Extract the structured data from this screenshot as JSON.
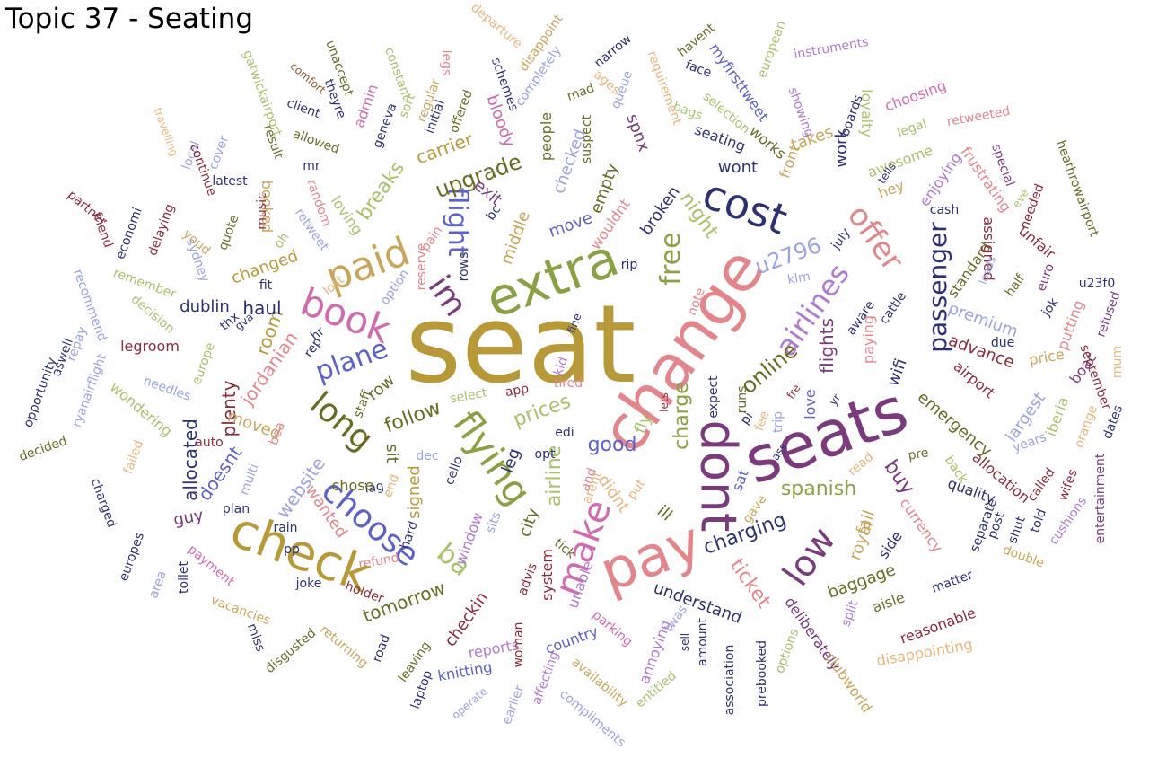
{
  "title": "Topic 37 - Seating",
  "colors": {
    "gold": "#b8993a",
    "rose": "#e2868c",
    "green": "#8aa045",
    "purple": "#7a3a7c",
    "navy": "#2c3171",
    "pink": "#d06bb1",
    "olive": "#6b6a24",
    "blue": "#5b61c6",
    "brown": "#8b5a2b",
    "maroon": "#8a2a3a",
    "lilac": "#b07bd0",
    "lime": "#a8c26a",
    "peach": "#e7b67a",
    "lav": "#9aa3e0",
    "tan": "#c9a55a"
  },
  "words": [
    {
      "t": "seat",
      "c": "gold"
    },
    {
      "t": "change",
      "c": "rose"
    },
    {
      "t": "seats",
      "c": "purple"
    },
    {
      "t": "pay",
      "c": "rose"
    },
    {
      "t": "extra",
      "c": "green"
    },
    {
      "t": "check",
      "c": "gold"
    },
    {
      "t": "dont",
      "c": "purple"
    },
    {
      "t": "cost",
      "c": "navy"
    },
    {
      "t": "paid",
      "c": "tan"
    },
    {
      "t": "book",
      "c": "pink"
    },
    {
      "t": "flying",
      "c": "green"
    },
    {
      "t": "low",
      "c": "purple"
    },
    {
      "t": "make",
      "c": "pink"
    },
    {
      "t": "choose",
      "c": "blue"
    },
    {
      "t": "long",
      "c": "olive"
    },
    {
      "t": "plane",
      "c": "blue"
    },
    {
      "t": "airlines",
      "c": "lilac"
    },
    {
      "t": "offer",
      "c": "rose"
    },
    {
      "t": "passenger",
      "c": "navy"
    },
    {
      "t": "free",
      "c": "green"
    },
    {
      "t": "flight",
      "c": "blue"
    },
    {
      "t": "im",
      "c": "purple"
    },
    {
      "t": "ba",
      "c": "lime"
    },
    {
      "t": "upgrade",
      "c": "olive"
    },
    {
      "t": "u2796",
      "c": "lav"
    },
    {
      "t": "online",
      "c": "olive"
    },
    {
      "t": "follow",
      "c": "olive"
    },
    {
      "t": "night",
      "c": "lime"
    },
    {
      "t": "charging",
      "c": "navy"
    },
    {
      "t": "spanish",
      "c": "green"
    },
    {
      "t": "ticket",
      "c": "rose"
    },
    {
      "t": "tomorrow",
      "c": "olive"
    },
    {
      "t": "charge",
      "c": "green"
    },
    {
      "t": "prices",
      "c": "lime"
    },
    {
      "t": "airline",
      "c": "lime"
    },
    {
      "t": "good",
      "c": "blue"
    },
    {
      "t": "breaks",
      "c": "lime"
    },
    {
      "t": "carrier",
      "c": "gold"
    },
    {
      "t": "website",
      "c": "lav"
    },
    {
      "t": "allocated",
      "c": "navy"
    },
    {
      "t": "doesnt",
      "c": "blue"
    },
    {
      "t": "plenty",
      "c": "maroon"
    },
    {
      "t": "jordanian",
      "c": "rose"
    },
    {
      "t": "room",
      "c": "gold"
    },
    {
      "t": "haul",
      "c": "navy"
    },
    {
      "t": "dublin",
      "c": "navy"
    },
    {
      "t": "changed",
      "c": "gold"
    },
    {
      "t": "booked",
      "c": "tan"
    },
    {
      "t": "moved",
      "c": "tan"
    },
    {
      "t": "wanted",
      "c": "rose"
    },
    {
      "t": "row",
      "c": "olive"
    },
    {
      "t": "sit",
      "c": "olive"
    },
    {
      "t": "signed",
      "c": "gold"
    },
    {
      "t": "checkin",
      "c": "maroon"
    },
    {
      "t": "window",
      "c": "lilac"
    },
    {
      "t": "city",
      "c": "olive"
    },
    {
      "t": "leg",
      "c": "navy"
    },
    {
      "t": "middle",
      "c": "tan"
    },
    {
      "t": "exit",
      "c": "purple"
    },
    {
      "t": "checked",
      "c": "lav"
    },
    {
      "t": "empty",
      "c": "olive"
    },
    {
      "t": "move",
      "c": "blue"
    },
    {
      "t": "wouldnt",
      "c": "rose"
    },
    {
      "t": "broken",
      "c": "navy"
    },
    {
      "t": "didnt",
      "c": "peach"
    },
    {
      "t": "fly",
      "c": "lime"
    },
    {
      "t": "ill",
      "c": "olive"
    },
    {
      "t": "front",
      "c": "tan"
    },
    {
      "t": "takes",
      "c": "tan"
    },
    {
      "t": "work",
      "c": "navy"
    },
    {
      "t": "works",
      "c": "olive"
    },
    {
      "t": "wont",
      "c": "navy"
    },
    {
      "t": "seating",
      "c": "navy"
    },
    {
      "t": "spnx",
      "c": "purple"
    },
    {
      "t": "awesome",
      "c": "lime"
    },
    {
      "t": "hey",
      "c": "tan"
    },
    {
      "t": "flights",
      "c": "purple"
    },
    {
      "t": "paying",
      "c": "rose"
    },
    {
      "t": "premium",
      "c": "lav"
    },
    {
      "t": "advance",
      "c": "maroon"
    },
    {
      "t": "airport",
      "c": "maroon"
    },
    {
      "t": "emergency",
      "c": "olive"
    },
    {
      "t": "wifi",
      "c": "navy"
    },
    {
      "t": "buy",
      "c": "purple"
    },
    {
      "t": "fail",
      "c": "tan"
    },
    {
      "t": "royal",
      "c": "tan"
    },
    {
      "t": "side",
      "c": "navy"
    },
    {
      "t": "baggage",
      "c": "olive"
    },
    {
      "t": "aisle",
      "c": "olive"
    },
    {
      "t": "understand",
      "c": "navy"
    },
    {
      "t": "deliberately",
      "c": "purple"
    },
    {
      "t": "clubworld",
      "c": "tan"
    },
    {
      "t": "disappointing",
      "c": "peach"
    },
    {
      "t": "reasonable",
      "c": "maroon"
    },
    {
      "t": "matter",
      "c": "navy"
    },
    {
      "t": "currency",
      "c": "rose"
    },
    {
      "t": "quality",
      "c": "navy"
    },
    {
      "t": "back",
      "c": "lime"
    },
    {
      "t": "pre",
      "c": "olive"
    },
    {
      "t": "allocation",
      "c": "maroon"
    },
    {
      "t": "largest",
      "c": "lav"
    },
    {
      "t": "years",
      "c": "lav"
    },
    {
      "t": "iberia",
      "c": "lime"
    },
    {
      "t": "price",
      "c": "tan"
    },
    {
      "t": "boac",
      "c": "purple"
    },
    {
      "t": "putting",
      "c": "rose"
    },
    {
      "t": "september",
      "c": "maroon"
    },
    {
      "t": "standard",
      "c": "olive"
    },
    {
      "t": "loyalty",
      "c": "lime"
    },
    {
      "t": "boards",
      "c": "navy"
    },
    {
      "t": "choosing",
      "c": "pink"
    },
    {
      "t": "legal",
      "c": "lime"
    },
    {
      "t": "retweeted",
      "c": "rose"
    },
    {
      "t": "enjoying",
      "c": "lilac"
    },
    {
      "t": "frustrating",
      "c": "rose"
    },
    {
      "t": "cash",
      "c": "navy"
    },
    {
      "t": "assigned",
      "c": "maroon"
    },
    {
      "t": "unfair",
      "c": "maroon"
    },
    {
      "t": "euro",
      "c": "purple"
    },
    {
      "t": "half",
      "c": "olive"
    },
    {
      "t": "heathrowairport",
      "c": "olive"
    },
    {
      "t": "u23f0",
      "c": "navy"
    },
    {
      "t": "refused",
      "c": "purple"
    },
    {
      "t": "instruments",
      "c": "lilac"
    },
    {
      "t": "european",
      "c": "lime"
    },
    {
      "t": "showing",
      "c": "lilac"
    },
    {
      "t": "havent",
      "c": "olive"
    },
    {
      "t": "myfirsttweet",
      "c": "blue"
    },
    {
      "t": "face",
      "c": "navy"
    },
    {
      "t": "selection",
      "c": "lime"
    },
    {
      "t": "bags",
      "c": "lime"
    },
    {
      "t": "requirement",
      "c": "peach"
    },
    {
      "t": "narrow",
      "c": "navy"
    },
    {
      "t": "queue",
      "c": "lav"
    },
    {
      "t": "ages",
      "c": "peach"
    },
    {
      "t": "mad",
      "c": "olive"
    },
    {
      "t": "disappoint",
      "c": "tan"
    },
    {
      "t": "departure",
      "c": "peach"
    },
    {
      "t": "completely",
      "c": "lav"
    },
    {
      "t": "schemes",
      "c": "navy"
    },
    {
      "t": "offered",
      "c": "olive"
    },
    {
      "t": "legs",
      "c": "rose"
    },
    {
      "t": "regular",
      "c": "tan"
    },
    {
      "t": "constant",
      "c": "lime"
    },
    {
      "t": "initial",
      "c": "navy"
    },
    {
      "t": "unaccept",
      "c": "olive"
    },
    {
      "t": "theyre",
      "c": "navy"
    },
    {
      "t": "admin",
      "c": "pink"
    },
    {
      "t": "geneva",
      "c": "navy"
    },
    {
      "t": "bloody",
      "c": "pink"
    },
    {
      "t": "people",
      "c": "olive"
    },
    {
      "t": "suspect",
      "c": "olive"
    },
    {
      "t": "comfort",
      "c": "brown"
    },
    {
      "t": "client",
      "c": "navy"
    },
    {
      "t": "allowed",
      "c": "olive"
    },
    {
      "t": "result",
      "c": "olive"
    },
    {
      "t": "gatwickairport",
      "c": "lime"
    },
    {
      "t": "travelling",
      "c": "peach"
    },
    {
      "t": "local",
      "c": "lav"
    },
    {
      "t": "cover",
      "c": "lav"
    },
    {
      "t": "continue",
      "c": "maroon"
    },
    {
      "t": "latest",
      "c": "navy"
    },
    {
      "t": "music",
      "c": "maroon"
    },
    {
      "t": "random",
      "c": "rose"
    },
    {
      "t": "mr",
      "c": "navy"
    },
    {
      "t": "loving",
      "c": "lime"
    },
    {
      "t": "retweet",
      "c": "lav"
    },
    {
      "t": "partner",
      "c": "maroon"
    },
    {
      "t": "friend",
      "c": "maroon"
    },
    {
      "t": "economi",
      "c": "navy"
    },
    {
      "t": "delaying",
      "c": "maroon"
    },
    {
      "t": "sydney",
      "c": "lav"
    },
    {
      "t": "quote",
      "c": "olive"
    },
    {
      "t": "youd",
      "c": "tan"
    },
    {
      "t": "remember",
      "c": "lime"
    },
    {
      "t": "recommend",
      "c": "lav"
    },
    {
      "t": "decision",
      "c": "lime"
    },
    {
      "t": "legroom",
      "c": "maroon"
    },
    {
      "t": "europe",
      "c": "lime"
    },
    {
      "t": "thx",
      "c": "navy"
    },
    {
      "t": "gva",
      "c": "navy"
    },
    {
      "t": "repay",
      "c": "lav"
    },
    {
      "t": "aswell",
      "c": "navy"
    },
    {
      "t": "opportunity",
      "c": "navy"
    },
    {
      "t": "ryanairflight",
      "c": "lav"
    },
    {
      "t": "needles",
      "c": "lav"
    },
    {
      "t": "wondering",
      "c": "lime"
    },
    {
      "t": "decided",
      "c": "olive"
    },
    {
      "t": "failed",
      "c": "peach"
    },
    {
      "t": "charged",
      "c": "navy"
    },
    {
      "t": "europes",
      "c": "navy"
    },
    {
      "t": "area",
      "c": "lav"
    },
    {
      "t": "toilet",
      "c": "navy"
    },
    {
      "t": "payment",
      "c": "pink"
    },
    {
      "t": "vacancies",
      "c": "tan"
    },
    {
      "t": "guy",
      "c": "purple"
    },
    {
      "t": "auto",
      "c": "maroon"
    },
    {
      "t": "plan",
      "c": "navy"
    },
    {
      "t": "multi",
      "c": "lav"
    },
    {
      "t": "rain",
      "c": "navy"
    },
    {
      "t": "pp",
      "c": "navy"
    },
    {
      "t": "joke",
      "c": "navy"
    },
    {
      "t": "holder",
      "c": "maroon"
    },
    {
      "t": "refund",
      "c": "rose"
    },
    {
      "t": "miss",
      "c": "navy"
    },
    {
      "t": "disgusted",
      "c": "olive"
    },
    {
      "t": "returning",
      "c": "tan"
    },
    {
      "t": "road",
      "c": "navy"
    },
    {
      "t": "leaving",
      "c": "olive"
    },
    {
      "t": "laptop",
      "c": "navy"
    },
    {
      "t": "knitting",
      "c": "blue"
    },
    {
      "t": "reports",
      "c": "lilac"
    },
    {
      "t": "operate",
      "c": "lav"
    },
    {
      "t": "earlier",
      "c": "lav"
    },
    {
      "t": "woman",
      "c": "maroon"
    },
    {
      "t": "affecting",
      "c": "lilac"
    },
    {
      "t": "country",
      "c": "blue"
    },
    {
      "t": "compliments",
      "c": "lav"
    },
    {
      "t": "availability",
      "c": "tan"
    },
    {
      "t": "entitled",
      "c": "lime"
    },
    {
      "t": "annoying",
      "c": "lilac"
    },
    {
      "t": "twas",
      "c": "lav"
    },
    {
      "t": "amount",
      "c": "navy"
    },
    {
      "t": "association",
      "c": "navy"
    },
    {
      "t": "prebooked",
      "c": "navy"
    },
    {
      "t": "options",
      "c": "lime"
    },
    {
      "t": "parking",
      "c": "pink"
    },
    {
      "t": "sell",
      "c": "navy"
    },
    {
      "t": "split",
      "c": "lilac"
    },
    {
      "t": "system",
      "c": "maroon"
    },
    {
      "t": "unable",
      "c": "lilac"
    },
    {
      "t": "tick",
      "c": "olive"
    },
    {
      "t": "advis",
      "c": "maroon"
    },
    {
      "t": "cello",
      "c": "navy"
    },
    {
      "t": "sits",
      "c": "lav"
    },
    {
      "t": "hard",
      "c": "navy"
    },
    {
      "t": "iag",
      "c": "navy"
    },
    {
      "t": "end",
      "c": "peach"
    },
    {
      "t": "chose",
      "c": "olive"
    },
    {
      "t": "dec",
      "c": "lav"
    },
    {
      "t": "opt",
      "c": "navy"
    },
    {
      "t": "edi",
      "c": "navy"
    },
    {
      "t": "app",
      "c": "maroon"
    },
    {
      "t": "select",
      "c": "lime"
    },
    {
      "t": "tired",
      "c": "rose"
    },
    {
      "t": "kid",
      "c": "lilac"
    },
    {
      "t": "fine",
      "c": "navy"
    },
    {
      "t": "staff",
      "c": "olive"
    },
    {
      "t": "bea",
      "c": "rose"
    },
    {
      "t": "rep",
      "c": "navy"
    },
    {
      "t": "hr",
      "c": "navy"
    },
    {
      "t": "lost",
      "c": "peach"
    },
    {
      "t": "option",
      "c": "lav"
    },
    {
      "t": "reserve",
      "c": "rose"
    },
    {
      "t": "pain",
      "c": "rose"
    },
    {
      "t": "rows",
      "c": "navy"
    },
    {
      "t": "bc",
      "c": "navy"
    },
    {
      "t": "rip",
      "c": "navy"
    },
    {
      "t": "note",
      "c": "rose"
    },
    {
      "t": "expect",
      "c": "navy"
    },
    {
      "t": "runs",
      "c": "olive"
    },
    {
      "t": "lets",
      "c": "maroon"
    },
    {
      "t": "pi",
      "c": "navy"
    },
    {
      "t": "fee",
      "c": "peach"
    },
    {
      "t": "trip",
      "c": "lav"
    },
    {
      "t": "fre",
      "c": "maroon"
    },
    {
      "t": "klm",
      "c": "lav"
    },
    {
      "t": "love",
      "c": "blue"
    },
    {
      "t": "yr",
      "c": "navy"
    },
    {
      "t": "july",
      "c": "navy"
    },
    {
      "t": "aware",
      "c": "navy"
    },
    {
      "t": "cattle",
      "c": "navy"
    },
    {
      "t": "sat",
      "c": "blue"
    },
    {
      "t": "gave",
      "c": "tan"
    },
    {
      "t": "ass",
      "c": "navy"
    },
    {
      "t": "put",
      "c": "peach"
    },
    {
      "t": "arent",
      "c": "peach"
    },
    {
      "t": "read",
      "c": "peach"
    },
    {
      "t": "tells",
      "c": "navy"
    },
    {
      "t": "jok",
      "c": "navy"
    },
    {
      "t": "loads",
      "c": "lav"
    },
    {
      "t": "oh",
      "c": "lime"
    },
    {
      "t": "eve",
      "c": "lime"
    },
    {
      "t": "needed",
      "c": "maroon"
    },
    {
      "t": "special",
      "c": "purple"
    },
    {
      "t": "fit",
      "c": "navy"
    },
    {
      "t": "due",
      "c": "navy"
    },
    {
      "t": "post",
      "c": "navy"
    },
    {
      "t": "separate",
      "c": "navy"
    },
    {
      "t": "told",
      "c": "navy"
    },
    {
      "t": "shut",
      "c": "navy"
    },
    {
      "t": "called",
      "c": "maroon"
    },
    {
      "t": "wifes",
      "c": "maroon"
    },
    {
      "t": "cushions",
      "c": "lilac"
    },
    {
      "t": "double",
      "c": "tan"
    },
    {
      "t": "orange",
      "c": "peach"
    },
    {
      "t": "entertainment",
      "c": "purple"
    },
    {
      "t": "dates",
      "c": "navy"
    },
    {
      "t": "mum",
      "c": "peach"
    },
    {
      "t": "sort",
      "c": "lime"
    },
    {
      "t": "and",
      "c": "rose"
    }
  ]
}
